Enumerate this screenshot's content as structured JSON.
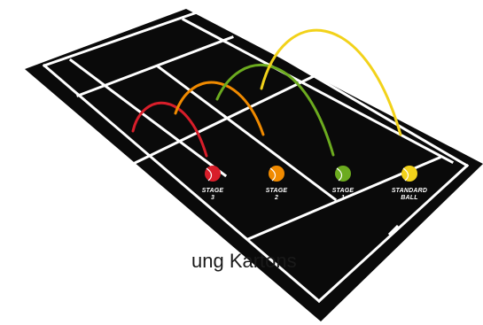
{
  "caption": "ung Kartons",
  "court": {
    "surface_color": "#0a0a0a",
    "line_color": "#ffffff"
  },
  "balls": [
    {
      "id": "stage-3",
      "label_line1": "STAGE",
      "label_line2": "3",
      "color": "#d81e2a"
    },
    {
      "id": "stage-2",
      "label_line1": "STAGE",
      "label_line2": "2",
      "color": "#f08a00"
    },
    {
      "id": "stage-1",
      "label_line1": "STAGE",
      "label_line2": "1",
      "color": "#6cab1f"
    },
    {
      "id": "standard",
      "label_line1": "STANDARD",
      "label_line2": "BALL",
      "color": "#f2d21a"
    }
  ]
}
